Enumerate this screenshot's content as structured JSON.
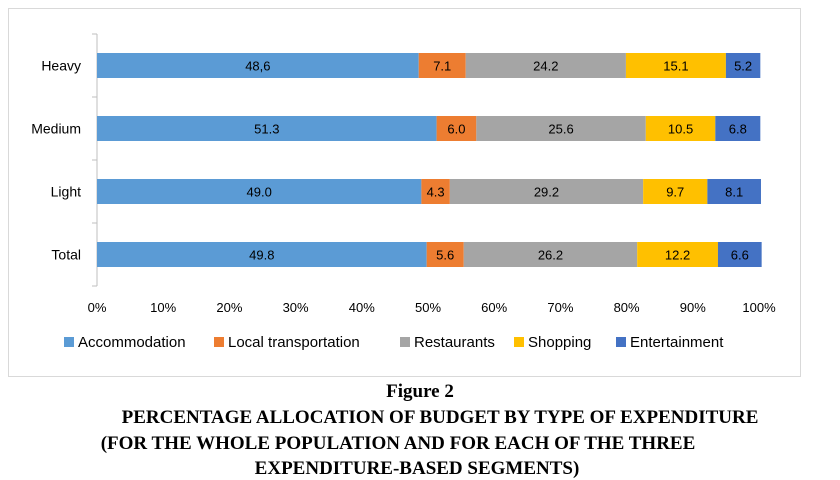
{
  "chart_data": {
    "type": "bar",
    "orientation": "horizontal",
    "stacked": "percent",
    "categories": [
      "Heavy",
      "Medium",
      "Light",
      "Total"
    ],
    "series": [
      {
        "name": "Accommodation",
        "color": "#5b9bd5",
        "values": [
          48.6,
          51.3,
          49.0,
          49.8
        ],
        "labels": [
          "48,6",
          "51.3",
          "49.0",
          "49.8"
        ]
      },
      {
        "name": "Local transportation",
        "color": "#ed7d31",
        "values": [
          7.1,
          6.0,
          4.3,
          5.6
        ],
        "labels": [
          "7.1",
          "6.0",
          "4.3",
          "5.6"
        ]
      },
      {
        "name": "Restaurants",
        "color": "#a5a5a5",
        "values": [
          24.2,
          25.6,
          29.2,
          26.2
        ],
        "labels": [
          "24.2",
          "25.6",
          "29.2",
          "26.2"
        ]
      },
      {
        "name": "Shopping",
        "color": "#ffc000",
        "values": [
          15.1,
          10.5,
          9.7,
          12.2
        ],
        "labels": [
          "15.1",
          "10.5",
          "9.7",
          "12.2"
        ]
      },
      {
        "name": "Entertainment",
        "color": "#4472c4",
        "values": [
          5.2,
          6.8,
          8.1,
          6.6
        ],
        "labels": [
          "5.2",
          "6.8",
          "8.1",
          "6.6"
        ]
      }
    ],
    "xticks": [
      "0%",
      "10%",
      "20%",
      "30%",
      "40%",
      "50%",
      "60%",
      "70%",
      "80%",
      "90%",
      "100%"
    ],
    "xlim": [
      0,
      100
    ],
    "grid": false,
    "legend_position": "bottom"
  },
  "caption": {
    "figure": "Figure 2",
    "line1": "PERCENTAGE ALLOCATION OF BUDGET BY TYPE OF EXPENDITURE",
    "line2": "(FOR THE WHOLE POPULATION AND FOR EACH OF THE THREE",
    "line3": "EXPENDITURE-BASED SEGMENTS)"
  }
}
